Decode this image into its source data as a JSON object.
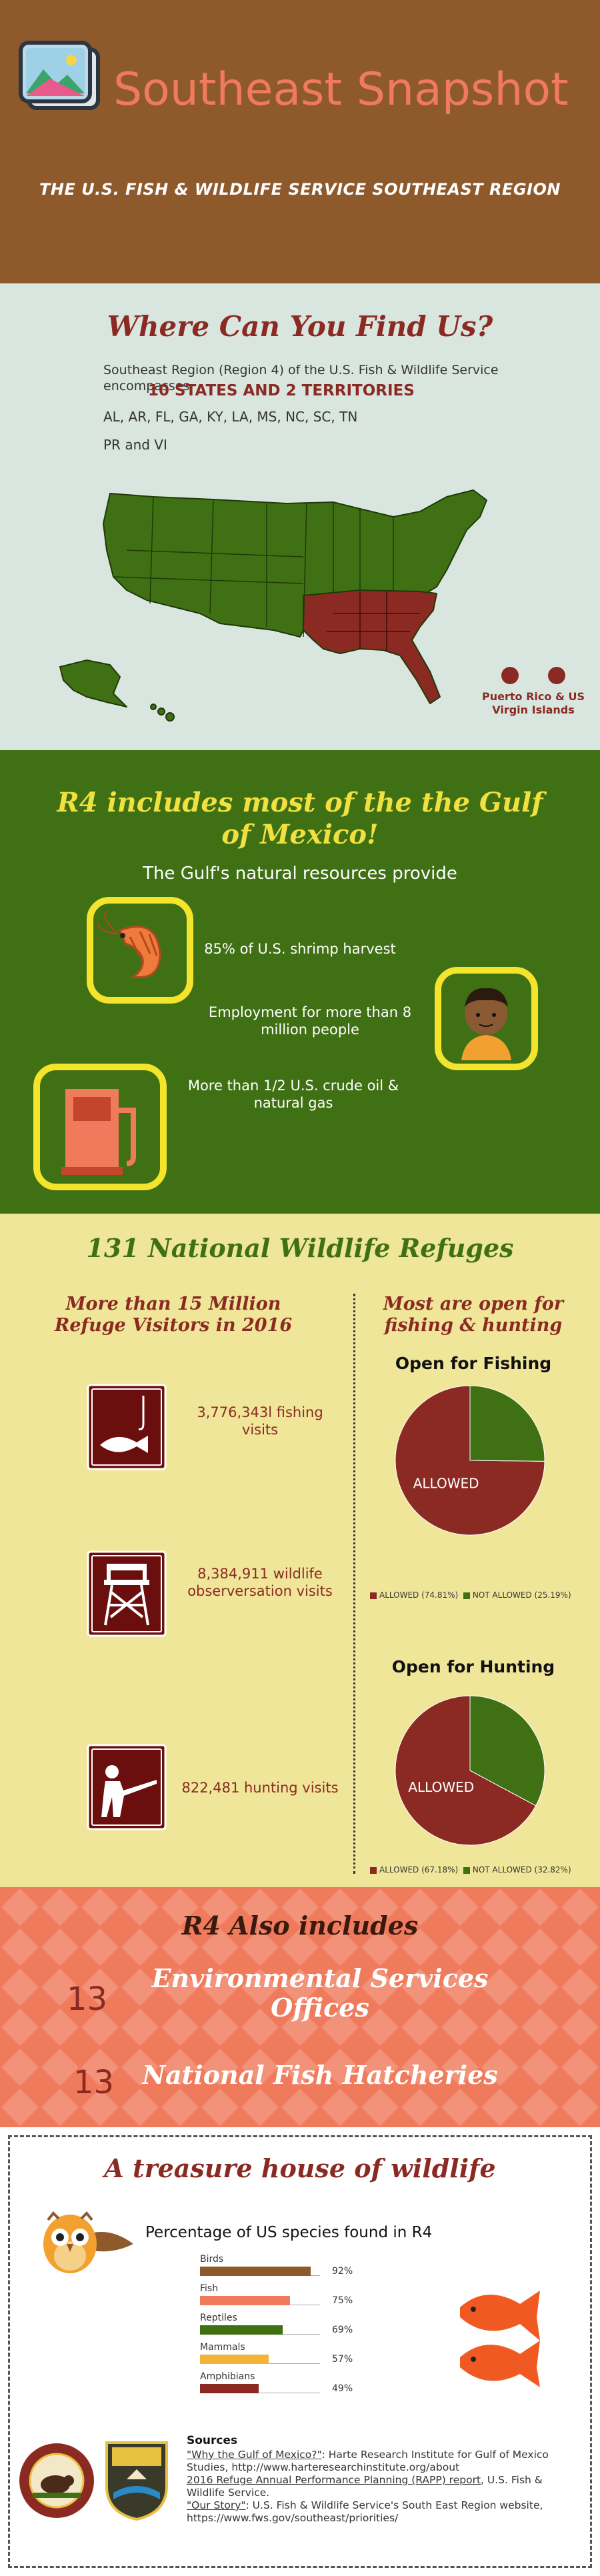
{
  "header": {
    "title": "Southeast Snapshot",
    "subtitle": "THE U.S. FISH & WILDLIFE SERVICE SOUTHEAST REGION"
  },
  "where": {
    "heading": "Where Can You Find Us?",
    "description": "Southeast Region (Region 4) of the U.S. Fish & Wildlife Service encompasses",
    "count": "10 STATES AND 2 TERRITORIES",
    "states": "AL, AR, FL, GA, KY,  LA, MS,  NC, SC, TN",
    "territories": "PR and VI",
    "pr_label": "Puerto Rico & US Virgin Islands"
  },
  "gulf": {
    "heading": "R4 includes most of the the Gulf of Mexico!",
    "subheading": "The Gulf's natural resources provide",
    "items": [
      {
        "text": "85% of U.S. shrimp harvest",
        "icon": "shrimp-icon"
      },
      {
        "text": "Employment for more than 8 million people",
        "icon": "person-icon"
      },
      {
        "text": "More than 1/2 U.S. crude oil & natural gas",
        "icon": "gas-pump-icon"
      }
    ]
  },
  "refuges": {
    "heading": "131 National Wildlife Refuges",
    "left_heading": "More than 15 Million Refuge Visitors in 2016",
    "right_heading": "Most are open for fishing & hunting",
    "visits": [
      {
        "text": "3,776,343l fishing visits",
        "icon": "fishing-icon"
      },
      {
        "text": "8,384,911  wildlife observersation visits",
        "icon": "watchtower-icon"
      },
      {
        "text": "822,481 hunting visits",
        "icon": "hunting-icon"
      }
    ]
  },
  "chart_data": [
    {
      "type": "pie",
      "title": "Open for Fishing",
      "categories": [
        "ALLOWED",
        "NOT ALLOWED"
      ],
      "values": [
        74.81,
        25.19
      ],
      "slice_label": "ALLOWED",
      "legend": [
        "ALLOWED (74.81%)",
        "NOT ALLOWED (25.19%)"
      ],
      "colors": [
        "#8a2a22",
        "#3f7013"
      ]
    },
    {
      "type": "pie",
      "title": "Open for Hunting",
      "categories": [
        "ALLOWED",
        "NOT ALLOWED"
      ],
      "values": [
        67.18,
        32.82
      ],
      "slice_label": "ALLOWED",
      "legend": [
        "ALLOWED (67.18%)",
        "NOT ALLOWED (32.82%)"
      ],
      "colors": [
        "#8a2a22",
        "#3f7013"
      ]
    },
    {
      "type": "bar",
      "title": "Percentage of US species found in R4",
      "categories": [
        "Birds",
        "Fish",
        "Reptiles",
        "Mammals",
        "Amphibians"
      ],
      "values": [
        92,
        75,
        69,
        57,
        49
      ],
      "value_labels": [
        "92%",
        "75%",
        "69%",
        "57%",
        "49%"
      ],
      "colors": [
        "#8e5a2c",
        "#f07a5c",
        "#3f7013",
        "#f2b437",
        "#8a2a22"
      ],
      "ylim": [
        0,
        100
      ]
    }
  ],
  "also": {
    "heading": "R4 Also includes",
    "items": [
      {
        "number": "13",
        "label": "Environmental Services Offices"
      },
      {
        "number": "13",
        "label": "National Fish Hatcheries"
      }
    ]
  },
  "treasure": {
    "heading": "A treasure house of wildlife",
    "subheading": "Percentage of US species found in R4"
  },
  "sources": {
    "heading": "Sources",
    "s1_link": "\"Why the Gulf of Mexico?\"",
    "s1_text": ": Harte Research Institute for Gulf of Mexico Studies, http://www.harteresearchinstitute.org/about",
    "s2_link": "2016 Refuge Annual Performance Planning (RAPP) report",
    "s2_text": ", U.S. Fish & Wildlife Service.",
    "s3_link": "\"Our Story\"",
    "s3_text": ": U.S. Fish & Wildlife Service's South East Region website,  https://www.fws.gov/southeast/priorities/"
  },
  "seals": {
    "doi_seal": "U.S. DEPARTMENT OF THE INTERIOR MARCH 3, 1849",
    "fws_logo": "U.S. FISH & WILDLIFE SERVICE"
  }
}
